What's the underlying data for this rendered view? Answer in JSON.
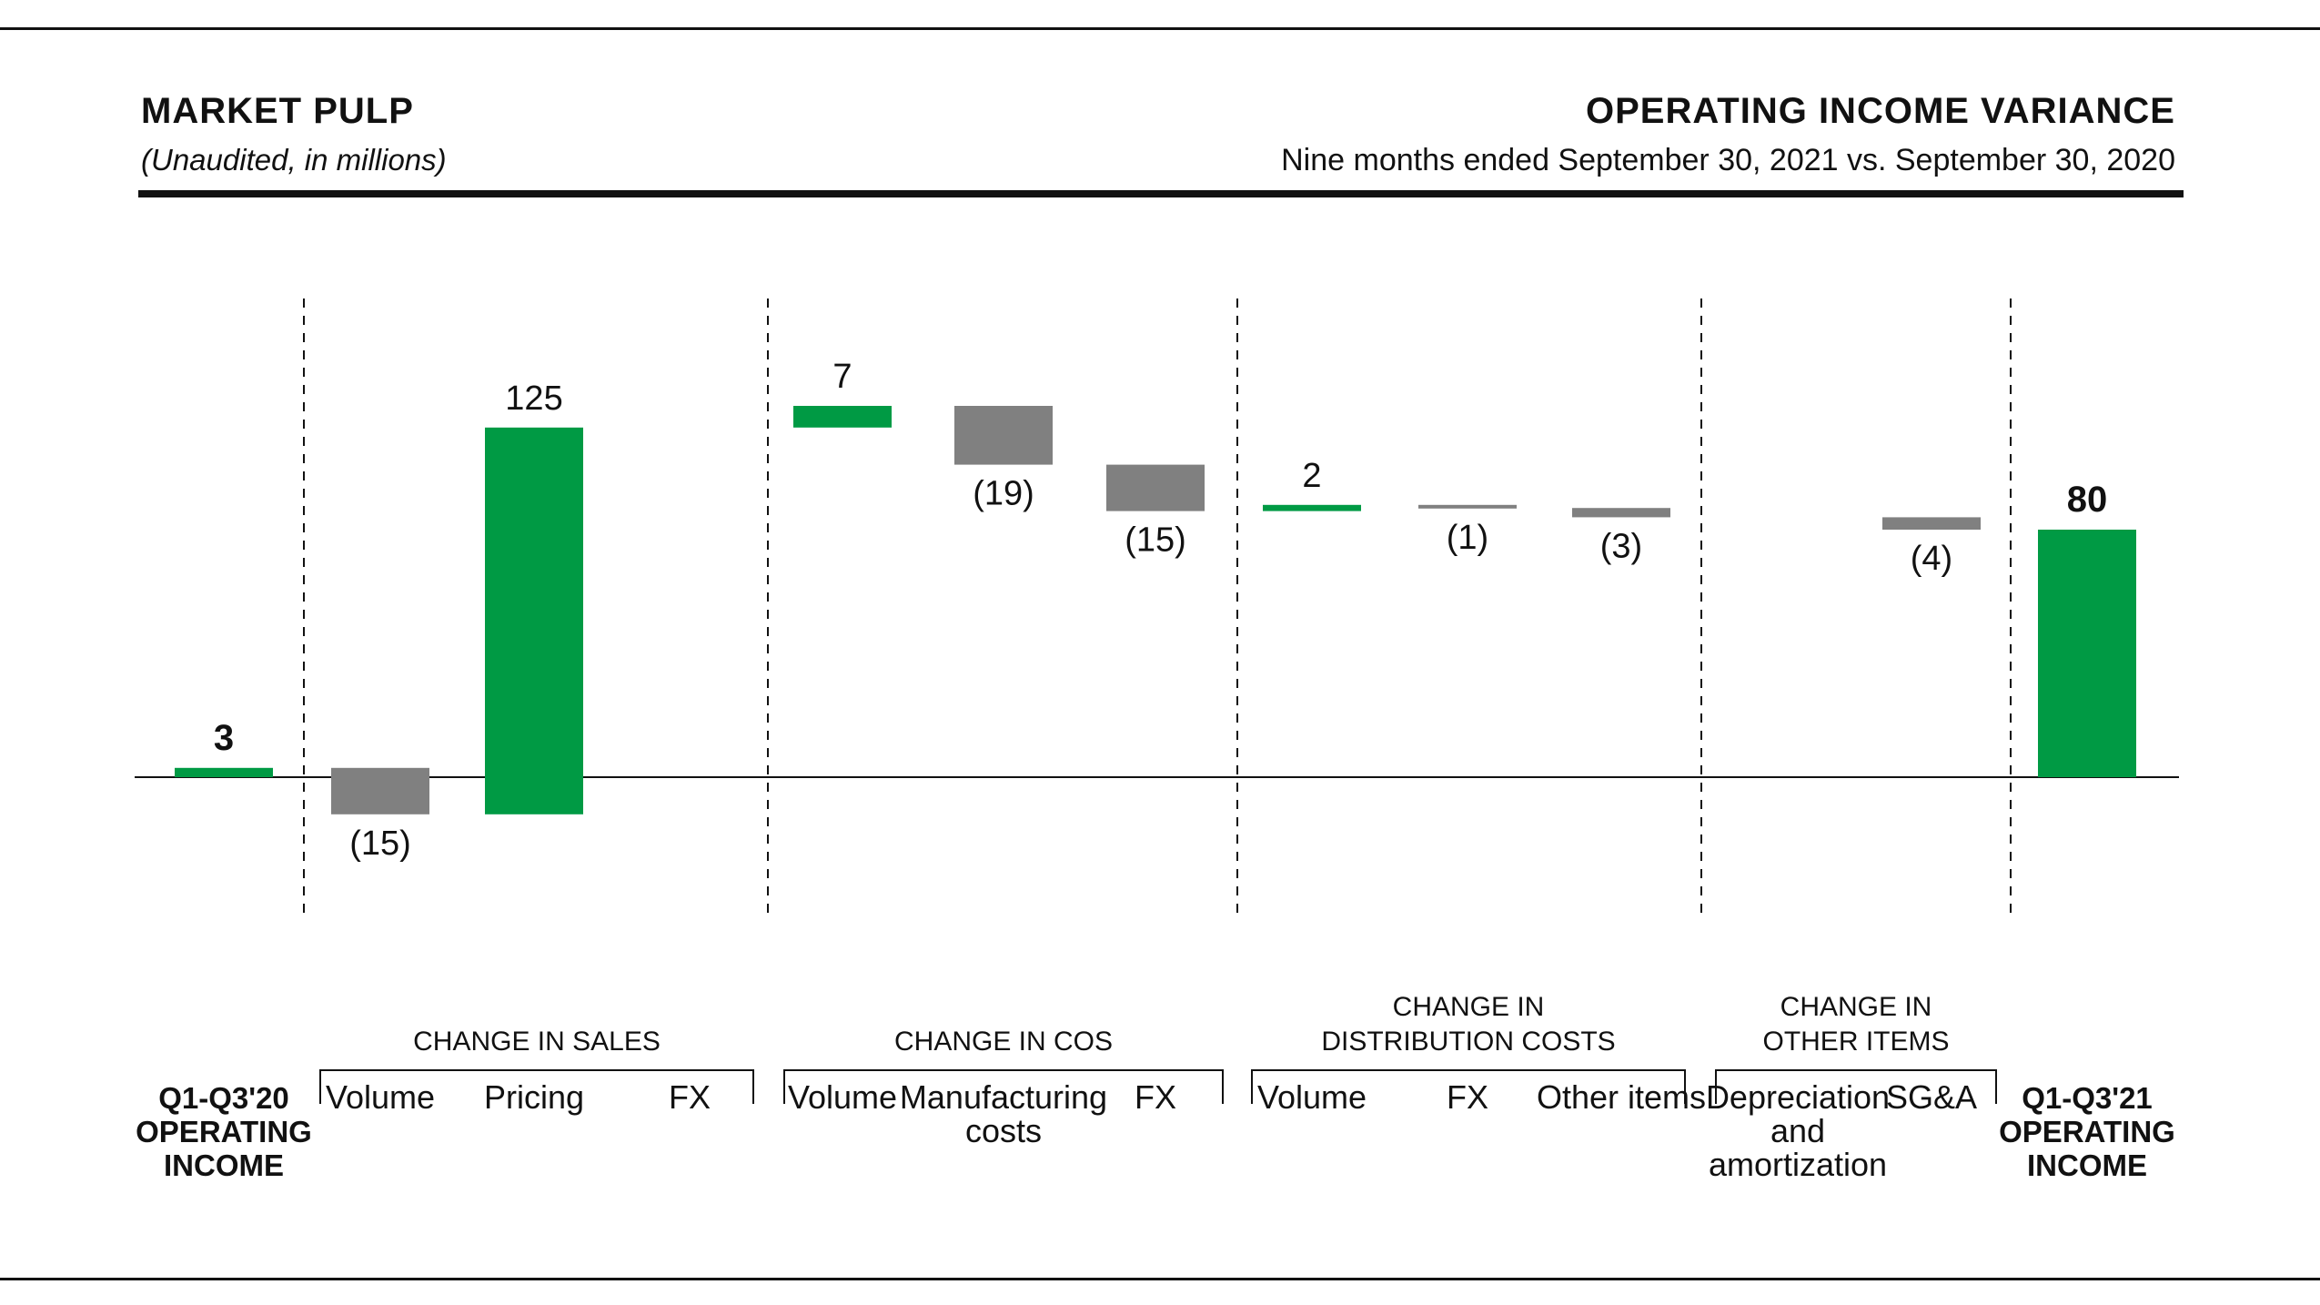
{
  "header": {
    "title_left": "MARKET PULP",
    "subtitle_left": "(Unaudited, in millions)",
    "title_right": "OPERATING INCOME VARIANCE",
    "subtitle_right": "Nine months ended September 30, 2021 vs. September 30, 2020"
  },
  "colors": {
    "positive": "#009a44",
    "negative": "#808080",
    "text": "#111111"
  },
  "chart_data": {
    "type": "bar",
    "subtype": "waterfall",
    "start": {
      "label": "Q1-Q3'20 OPERATING INCOME",
      "value": 3,
      "display": "3"
    },
    "end": {
      "label": "Q1-Q3'21 OPERATING INCOME",
      "value": 80,
      "display": "80"
    },
    "groups": [
      {
        "name": "CHANGE IN SALES",
        "items": [
          {
            "label": "Volume",
            "value": -15,
            "display": "(15)"
          },
          {
            "label": "Pricing",
            "value": 125,
            "display": "125"
          },
          {
            "label": "FX",
            "value": 0,
            "display": ""
          }
        ]
      },
      {
        "name": "CHANGE IN COS",
        "items": [
          {
            "label": "Volume",
            "value": 7,
            "display": "7"
          },
          {
            "label": "Manufacturing costs",
            "value": -19,
            "display": "(19)"
          },
          {
            "label": "FX",
            "value": -15,
            "display": "(15)"
          }
        ]
      },
      {
        "name": "CHANGE IN DISTRIBUTION COSTS",
        "items": [
          {
            "label": "Volume",
            "value": 2,
            "display": "2"
          },
          {
            "label": "FX",
            "value": -1,
            "display": "(1)"
          },
          {
            "label": "Other items",
            "value": -3,
            "display": "(3)"
          }
        ]
      },
      {
        "name": "CHANGE IN OTHER ITEMS",
        "items": [
          {
            "label": "Depreciation and amortization",
            "value": 0,
            "display": ""
          },
          {
            "label": "SG&A",
            "value": -4,
            "display": "(4)"
          }
        ]
      }
    ]
  }
}
